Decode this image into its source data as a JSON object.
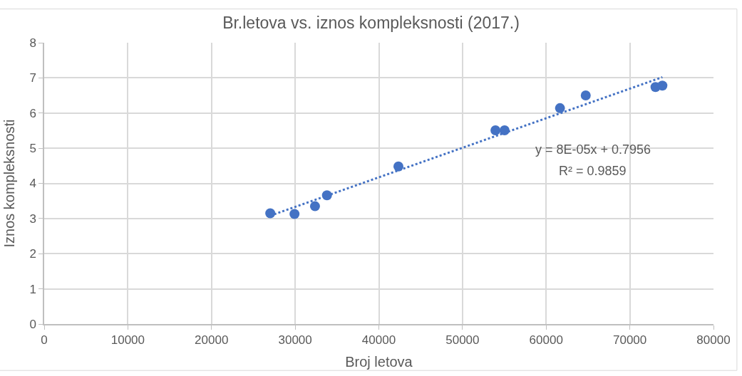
{
  "chart_data": {
    "type": "scatter",
    "title": "Br.letova vs. iznos kompleksnosti (2017.)",
    "xlabel": "Broj letova",
    "ylabel": "Iznos kompleksnosti",
    "xlim": [
      0,
      80000
    ],
    "xticks": [
      0,
      10000,
      20000,
      30000,
      40000,
      50000,
      60000,
      70000,
      80000
    ],
    "ylim": [
      0,
      8
    ],
    "yticks": [
      0,
      1,
      2,
      3,
      4,
      5,
      6,
      7,
      8
    ],
    "grid": true,
    "marker": "circle",
    "series": [
      {
        "color": "#4472c4",
        "x": [
          27020,
          29920,
          32370,
          33800,
          42340,
          53940,
          55030,
          61650,
          64730,
          73070,
          73890
        ],
        "values": [
          3.15,
          3.13,
          3.35,
          3.66,
          4.48,
          5.51,
          5.51,
          6.14,
          6.5,
          6.74,
          6.78
        ]
      },
      {
        "type": "line",
        "color": "#4472c4",
        "line_style": "dotted",
        "marker": "none",
        "x": [
          27020,
          73890
        ],
        "values": [
          3.08,
          7.02
        ]
      }
    ],
    "annotations": [
      "y = 8E-05x + 0.7956",
      "R² = 0.9859"
    ]
  }
}
